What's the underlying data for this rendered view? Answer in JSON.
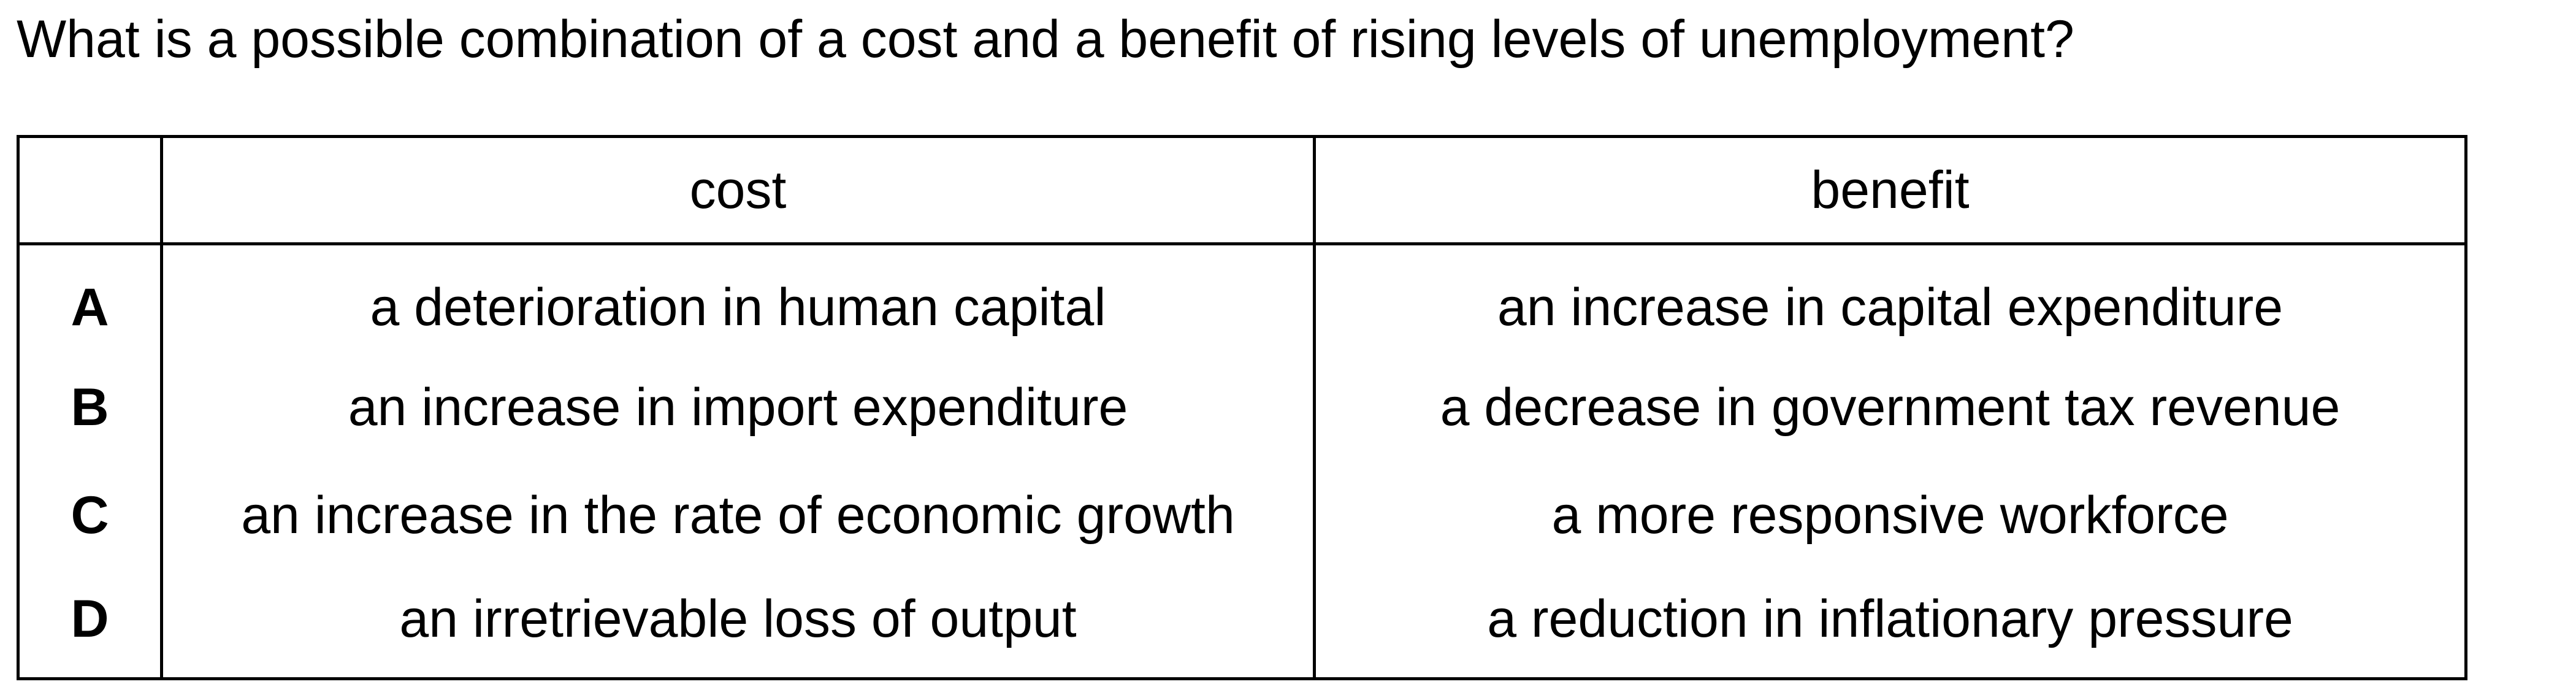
{
  "question": "What is a possible combination of a cost and a benefit of rising levels of unemployment?",
  "table": {
    "headers": {
      "letter": "",
      "cost": "cost",
      "benefit": "benefit"
    },
    "rows": [
      {
        "letter": "A",
        "cost": "a deterioration in human capital",
        "benefit": "an increase in capital expenditure"
      },
      {
        "letter": "B",
        "cost": "an increase in import expenditure",
        "benefit": "a decrease in government tax revenue"
      },
      {
        "letter": "C",
        "cost": "an increase in the rate of economic growth",
        "benefit": "a more responsive workforce"
      },
      {
        "letter": "D",
        "cost": "an irretrievable loss of output",
        "benefit": "a reduction in inflationary pressure"
      }
    ]
  }
}
